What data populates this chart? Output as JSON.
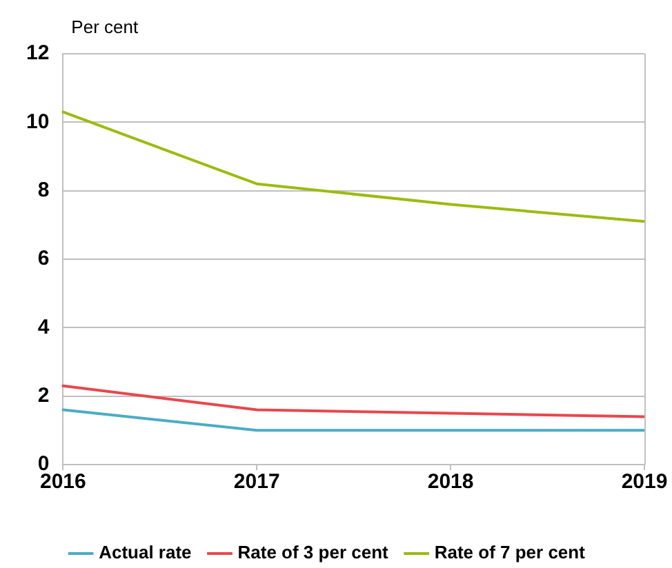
{
  "chart_data": {
    "type": "line",
    "ylabel": "Per cent",
    "categories": [
      "2016",
      "2017",
      "2018",
      "2019"
    ],
    "series": [
      {
        "name": "Actual rate",
        "color": "#4bacc6",
        "values": [
          1.6,
          1.0,
          1.0,
          1.0
        ]
      },
      {
        "name": "Rate of 3 per cent",
        "color": "#e8474c",
        "values": [
          2.3,
          1.6,
          1.5,
          1.4
        ]
      },
      {
        "name": "Rate of 7 per cent",
        "color": "#9bbb10",
        "values": [
          10.3,
          8.2,
          7.6,
          7.1
        ]
      }
    ],
    "ylim": [
      0,
      12
    ],
    "yticks": [
      0,
      2,
      4,
      6,
      8,
      10,
      12
    ],
    "grid": "y",
    "legend": "bottom",
    "marker": "none",
    "line_style": "solid"
  }
}
